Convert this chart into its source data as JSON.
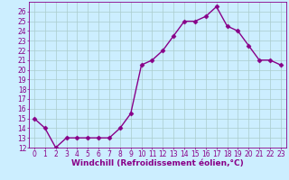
{
  "hours": [
    0,
    1,
    2,
    3,
    4,
    5,
    6,
    7,
    8,
    9,
    10,
    11,
    12,
    13,
    14,
    15,
    16,
    17,
    18,
    19,
    20,
    21,
    22,
    23
  ],
  "values": [
    15,
    14,
    12,
    13,
    13,
    13,
    13,
    13,
    14,
    15.5,
    20.5,
    21,
    22,
    23.5,
    25,
    25,
    25.5,
    26.5,
    24.5,
    24,
    22.5,
    21,
    21,
    20.5
  ],
  "ylim": [
    12,
    27
  ],
  "yticks": [
    12,
    13,
    14,
    15,
    16,
    17,
    18,
    19,
    20,
    21,
    22,
    23,
    24,
    25,
    26
  ],
  "xticks": [
    0,
    1,
    2,
    3,
    4,
    5,
    6,
    7,
    8,
    9,
    10,
    11,
    12,
    13,
    14,
    15,
    16,
    17,
    18,
    19,
    20,
    21,
    22,
    23
  ],
  "xlabel": "Windchill (Refroidissement éolien,°C)",
  "line_color": "#880088",
  "marker": "D",
  "marker_size": 2.5,
  "bg_color": "#cceeff",
  "grid_color": "#aacccc",
  "spine_color": "#880088",
  "tick_color": "#880088",
  "label_color": "#880088",
  "line_width": 1.0,
  "xlabel_fontsize": 6.5,
  "tick_fontsize": 5.5,
  "figsize": [
    3.2,
    2.0
  ],
  "dpi": 100
}
